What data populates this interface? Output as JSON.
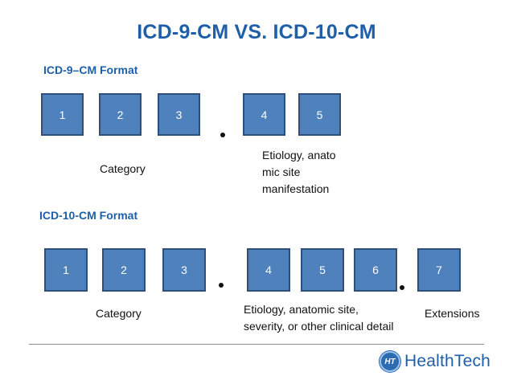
{
  "title": "ICD-9-CM VS. ICD-10-CM",
  "icd9": {
    "label": "ICD-9–CM Format",
    "boxes": [
      "1",
      "2",
      "3",
      "4",
      "5"
    ],
    "category": "Category",
    "etiology_lines": [
      "Etiology, anato",
      "mic site",
      "manifestation"
    ]
  },
  "icd10": {
    "label": "ICD-10-CM Format",
    "boxes": [
      "1",
      "2",
      "3",
      "4",
      "5",
      "6",
      "7"
    ],
    "category": "Category",
    "etiology_lines": [
      "Etiology, anatomic site,",
      "severity, or other clinical detail"
    ],
    "extensions": "Extensions"
  },
  "logo": {
    "badge": "HT",
    "text": "HealthTech"
  },
  "colors": {
    "title": "#1f5fa8",
    "box_fill": "#4f81bd",
    "box_border": "#2d4f7a"
  }
}
